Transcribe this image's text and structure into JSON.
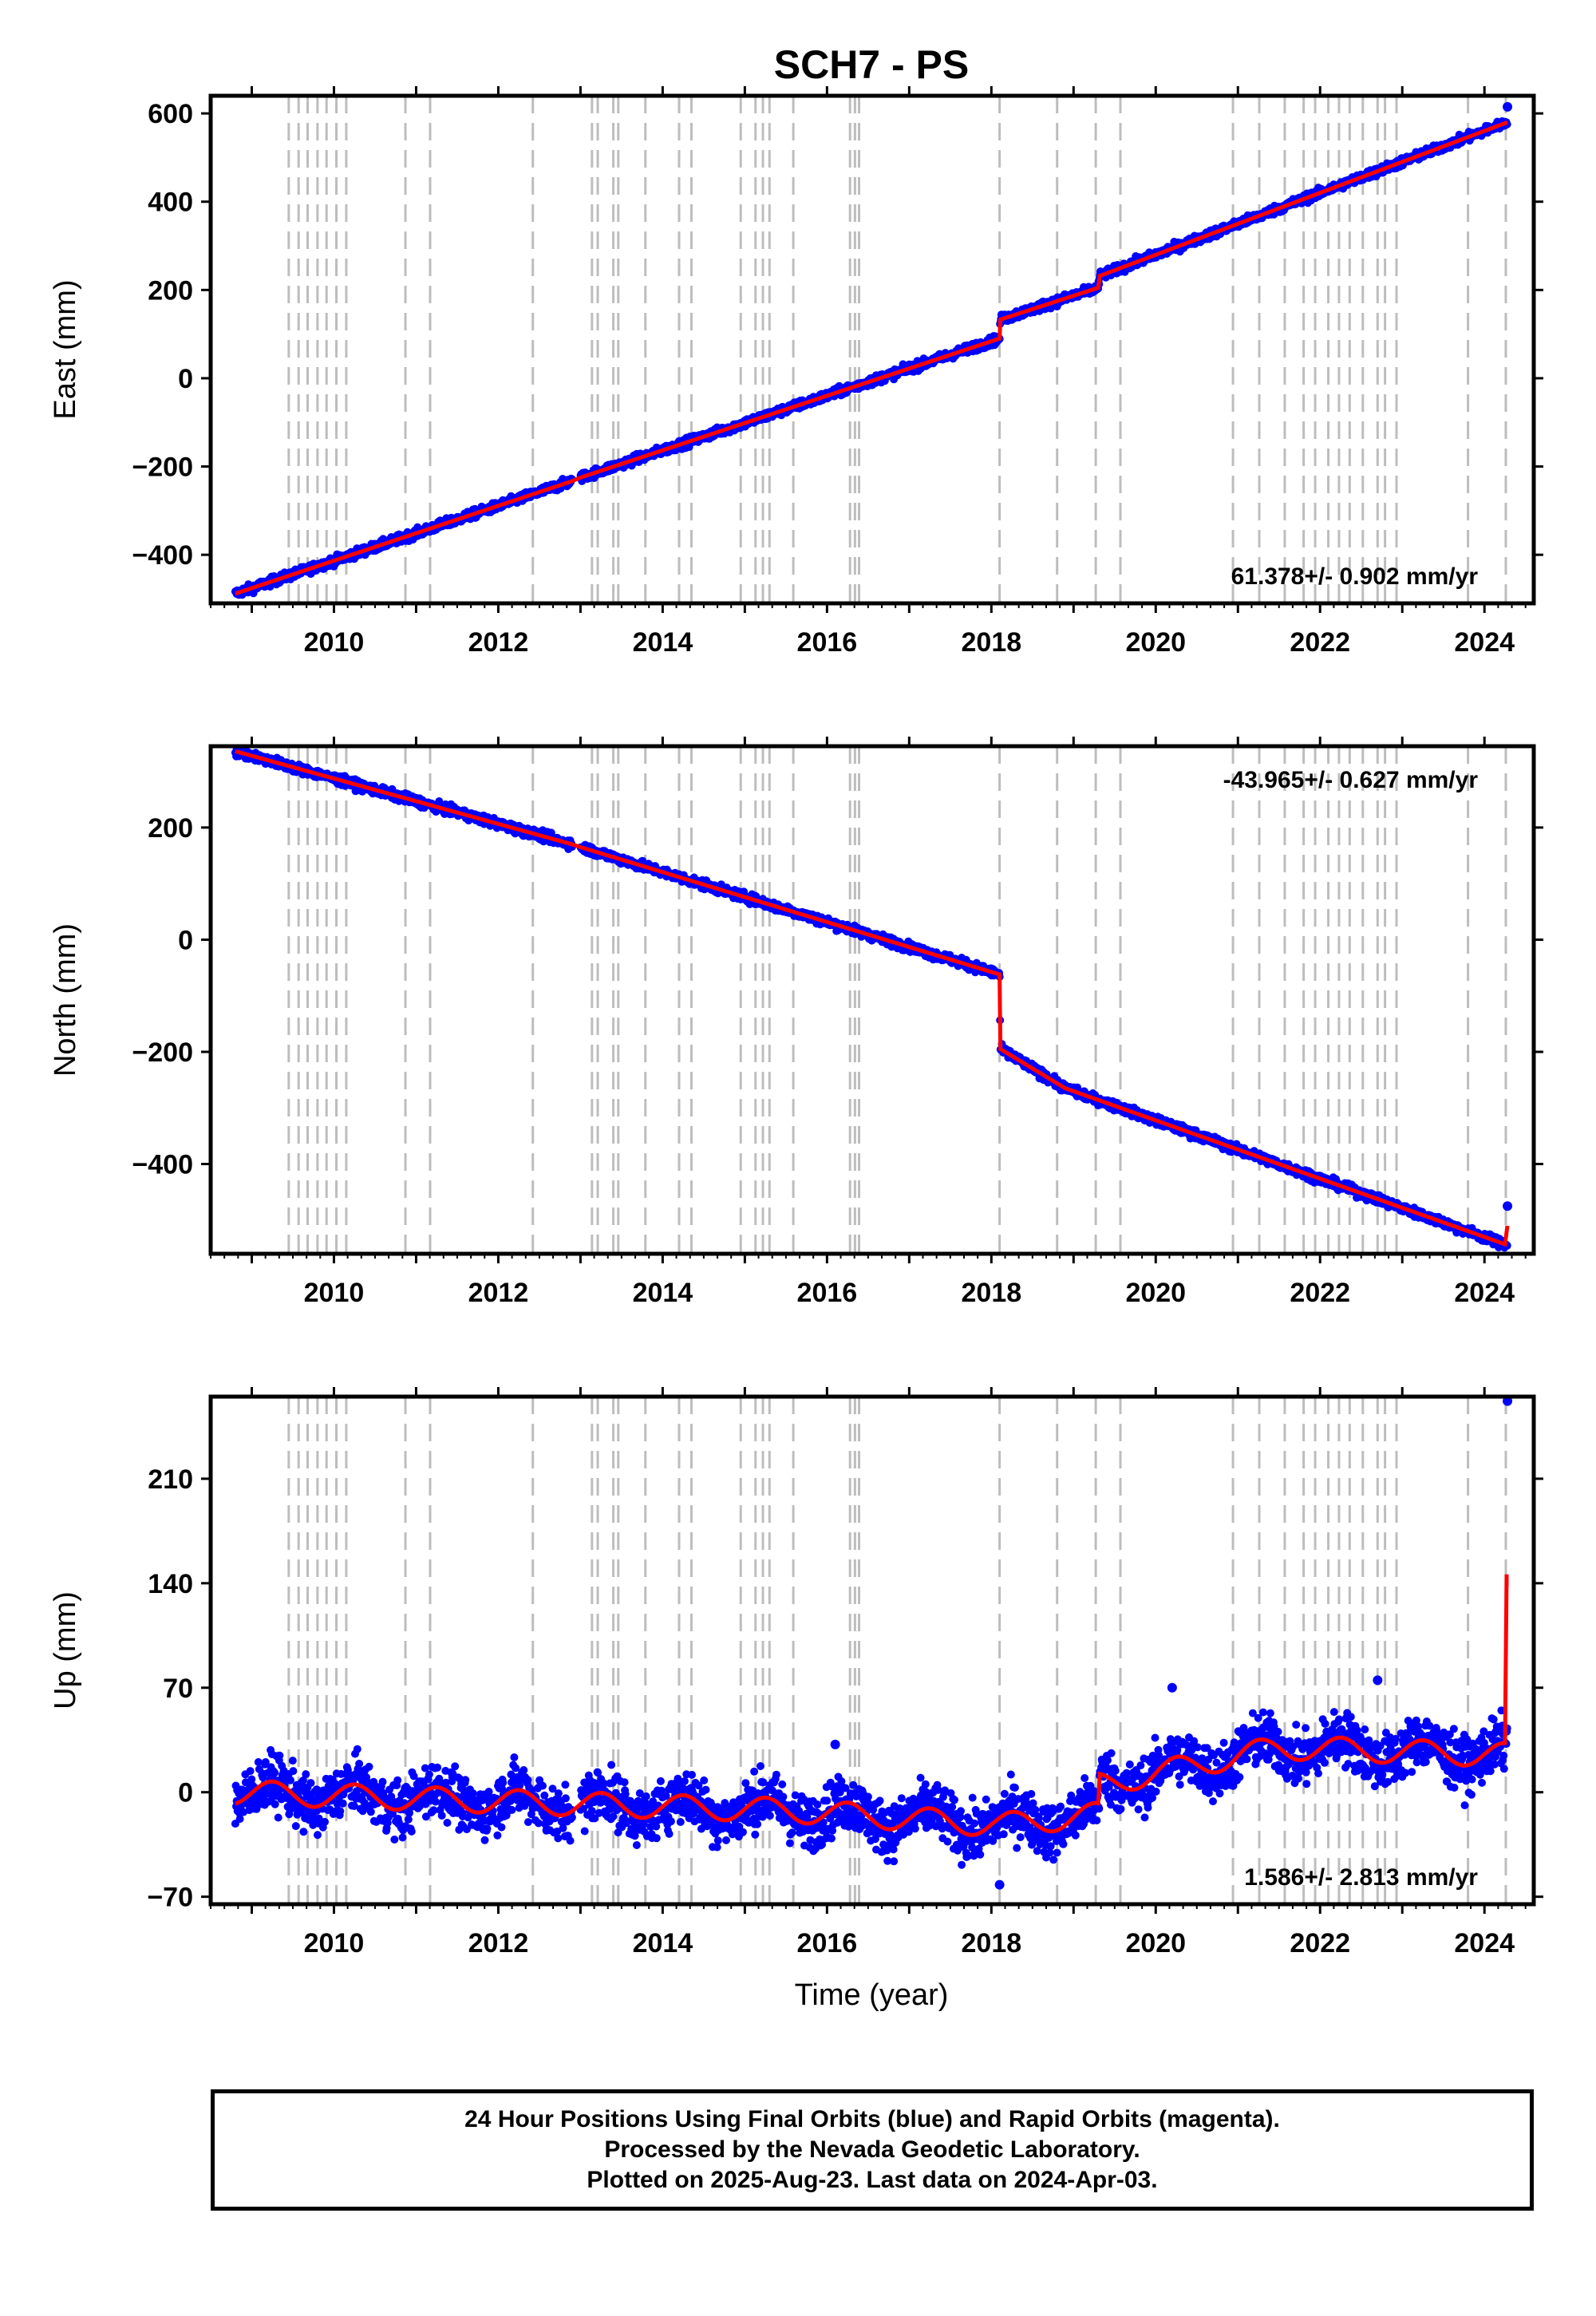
{
  "title": "SCH7 - PS",
  "xlabel": "Time (year)",
  "colors": {
    "final": "#0000ff",
    "model": "#ff0000",
    "steps": "#bdbdbd",
    "axis": "#000000"
  },
  "chart_data": [
    {
      "type": "scatter",
      "ylabel": "East (mm)",
      "xlim": [
        2008.5,
        2024.6
      ],
      "ylim": [
        -510,
        640
      ],
      "yticks": [
        -400,
        -200,
        0,
        200,
        400,
        600
      ],
      "ytick_labels": [
        "−400",
        "−200",
        "0",
        "200",
        "400",
        "600"
      ],
      "xticks": [
        2010,
        2012,
        2014,
        2016,
        2018,
        2020,
        2022,
        2024
      ],
      "rate": "61.378+/- 0.902 mm/yr",
      "rate_position": "bottom-right",
      "series": [
        {
          "role": "final-orbits",
          "knots": [
            [
              2008.8,
              -488
            ],
            [
              2012.9,
              -233
            ],
            [
              2013.0,
              -225
            ],
            [
              2018.1,
              90
            ],
            [
              2018.11,
              133
            ],
            [
              2019.3,
              205
            ],
            [
              2019.32,
              232
            ],
            [
              2024.28,
              580
            ]
          ],
          "noise": 5,
          "outliers": [
            [
              2024.28,
              615
            ]
          ]
        },
        {
          "role": "model",
          "knots": [
            [
              2008.8,
              -488
            ],
            [
              2012.9,
              -233
            ],
            [
              2013.0,
              -225
            ],
            [
              2018.1,
              90
            ],
            [
              2018.11,
              133
            ],
            [
              2019.3,
              205
            ],
            [
              2019.32,
              232
            ],
            [
              2024.28,
              580
            ]
          ]
        }
      ]
    },
    {
      "type": "scatter",
      "ylabel": "North (mm)",
      "xlim": [
        2008.5,
        2024.6
      ],
      "ylim": [
        -560,
        345
      ],
      "yticks": [
        -400,
        -200,
        0,
        200
      ],
      "ytick_labels": [
        "−400",
        "−200",
        "0",
        "200"
      ],
      "xticks": [
        2010,
        2012,
        2014,
        2016,
        2018,
        2020,
        2022,
        2024
      ],
      "rate": "-43.965+/- 0.627 mm/yr",
      "rate_position": "top-right",
      "series": [
        {
          "role": "final-orbits",
          "knots": [
            [
              2008.8,
              336
            ],
            [
              2012.9,
              170
            ],
            [
              2013.0,
              165
            ],
            [
              2018.1,
              -62
            ],
            [
              2018.11,
              -195
            ],
            [
              2018.9,
              -265
            ],
            [
              2024.28,
              -545
            ]
          ],
          "noise": 4,
          "outliers": [
            [
              2024.28,
              -475
            ]
          ]
        },
        {
          "role": "model",
          "knots": [
            [
              2008.8,
              336
            ],
            [
              2012.9,
              170
            ],
            [
              2013.0,
              165
            ],
            [
              2018.1,
              -62
            ],
            [
              2018.11,
              -195
            ],
            [
              2018.9,
              -265
            ],
            [
              2024.25,
              -543
            ],
            [
              2024.28,
              -510
            ]
          ]
        }
      ]
    },
    {
      "type": "scatter",
      "ylabel": "Up (mm)",
      "xlim": [
        2008.5,
        2024.6
      ],
      "ylim": [
        -75,
        265
      ],
      "yticks": [
        -70,
        0,
        70,
        140,
        210
      ],
      "ytick_labels": [
        "−70",
        "0",
        "70",
        "140",
        "210"
      ],
      "xticks": [
        2010,
        2012,
        2014,
        2016,
        2018,
        2020,
        2022,
        2024
      ],
      "rate": "1.586+/- 2.813 mm/yr",
      "rate_position": "bottom-right",
      "series": [
        {
          "role": "final-orbits",
          "knots": [
            [
              2008.8,
              0
            ],
            [
              2013.0,
              -8
            ],
            [
              2015.5,
              -12
            ],
            [
              2018.1,
              -22
            ],
            [
              2019.3,
              -15
            ],
            [
              2019.32,
              5
            ],
            [
              2021.5,
              30
            ],
            [
              2024.28,
              25
            ]
          ],
          "noise": 9,
          "outliers": [
            [
              2024.28,
              262
            ],
            [
              2018.1,
              -62
            ],
            [
              2020.2,
              70
            ],
            [
              2022.7,
              75
            ],
            [
              2016.1,
              32
            ]
          ]
        },
        {
          "role": "model",
          "knots": [
            [
              2008.8,
              0
            ],
            [
              2013.0,
              -8
            ],
            [
              2015.5,
              -12
            ],
            [
              2018.1,
              -22
            ],
            [
              2019.3,
              -15
            ],
            [
              2019.32,
              5
            ],
            [
              2021.5,
              30
            ],
            [
              2024.25,
              25
            ],
            [
              2024.27,
              138
            ]
          ]
        }
      ]
    }
  ],
  "step_epochs": [
    2009.45,
    2009.57,
    2009.68,
    2009.8,
    2009.91,
    2010.03,
    2010.15,
    2010.87,
    2011.17,
    2012.42,
    2013.14,
    2013.21,
    2013.4,
    2013.46,
    2013.79,
    2014.2,
    2014.35,
    2014.95,
    2015.13,
    2015.22,
    2015.3,
    2015.59,
    2016.28,
    2016.34,
    2016.39,
    2018.1,
    2018.8,
    2019.27,
    2019.57,
    2020.94,
    2021.26,
    2021.57,
    2021.8,
    2021.94,
    2022.1,
    2022.23,
    2022.36,
    2022.52,
    2022.7,
    2022.79,
    2022.93,
    2023.8,
    2024.26
  ],
  "footer": {
    "line1": "24 Hour Positions Using Final Orbits (blue) and Rapid Orbits (magenta).",
    "line2": "Processed by the Nevada Geodetic Laboratory.",
    "line3": "Plotted on 2025-Aug-23. Last data on 2024-Apr-03."
  }
}
